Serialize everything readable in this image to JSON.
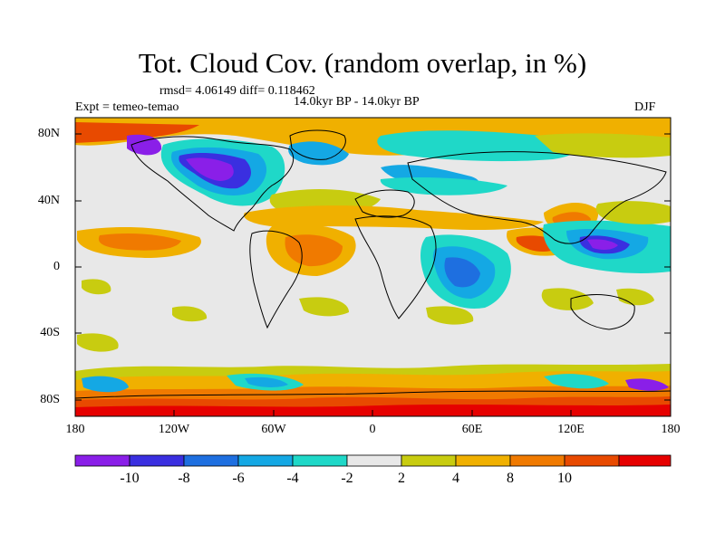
{
  "title": "Tot. Cloud Cov. (random overlap, in %)",
  "stats": "rmsd= 4.06149 diff= 0.118462",
  "experiment": "Expt = temeo-temao",
  "period": "14.0kyr BP - 14.0kyr BP",
  "season": "DJF",
  "lat_ticks": [
    "80N",
    "40N",
    "0",
    "40S",
    "80S"
  ],
  "lon_ticks": [
    "180",
    "120W",
    "60W",
    "0",
    "60E",
    "120E",
    "180"
  ],
  "colorbar": {
    "labels": [
      "-10",
      "-8",
      "-6",
      "-4",
      "-2",
      "2",
      "4",
      "8",
      "10"
    ],
    "colors": [
      "#8a1fe8",
      "#3a2fe0",
      "#1e6fe0",
      "#14a8e4",
      "#1fd8c8",
      "#e8e8e8",
      "#c8cc10",
      "#f0b000",
      "#f07a00",
      "#e84a00",
      "#e60000"
    ]
  }
}
